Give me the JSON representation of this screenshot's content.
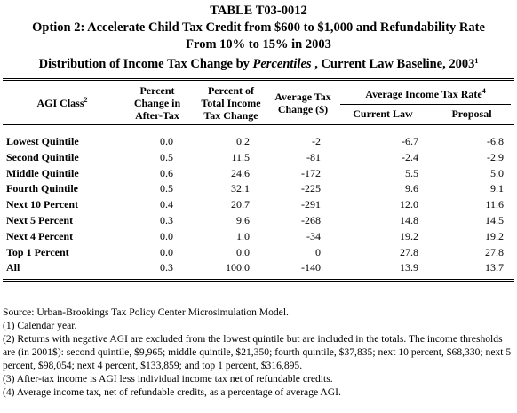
{
  "header": {
    "table_id": "TABLE T03-0012",
    "title_lines": [
      "Option 2: Accelerate Child Tax Credit from $600 to $1,000 and Refundability Rate",
      "From 10% to 15% in 2003"
    ],
    "subtitle": {
      "pre": "Distribution of Income Tax Change by ",
      "italic": "Percentiles",
      "post": " , Current Law Baseline, 2003",
      "sup": "1"
    }
  },
  "table": {
    "first_column": {
      "label": "AGI Class",
      "sup": "2"
    },
    "columns": [
      [
        "Percent",
        "Change in",
        "After-Tax"
      ],
      [
        "Percent of",
        "Total Income",
        "Tax Change"
      ],
      [
        "Average Tax",
        "Change ($)"
      ]
    ],
    "group": {
      "label": "Average Income Tax Rate",
      "sup": "4",
      "subcolumns": [
        "Current Law",
        "Proposal"
      ]
    },
    "rows": [
      [
        "Lowest Quintile",
        "0.0",
        "0.2",
        "-2",
        "-6.7",
        "-6.8"
      ],
      [
        "Second Quintile",
        "0.5",
        "11.5",
        "-81",
        "-2.4",
        "-2.9"
      ],
      [
        "Middle Quintile",
        "0.6",
        "24.6",
        "-172",
        "5.5",
        "5.0"
      ],
      [
        "Fourth Quintile",
        "0.5",
        "32.1",
        "-225",
        "9.6",
        "9.1"
      ],
      [
        "Next 10 Percent",
        "0.4",
        "20.7",
        "-291",
        "12.0",
        "11.6"
      ],
      [
        "Next 5 Percent",
        "0.3",
        "9.6",
        "-268",
        "14.8",
        "14.5"
      ],
      [
        "Next 4 Percent",
        "0.0",
        "1.0",
        "-34",
        "19.2",
        "19.2"
      ],
      [
        "Top 1 Percent",
        "0.0",
        "0.0",
        "0",
        "27.8",
        "27.8"
      ],
      [
        "All",
        "0.3",
        "100.0",
        "-140",
        "13.9",
        "13.7"
      ]
    ]
  },
  "notes": [
    "Source: Urban-Brookings Tax Policy Center Microsimulation Model.",
    "(1) Calendar year.",
    "(2) Returns with negative AGI are excluded from the lowest quintile but are included in the totals. The income thresholds are (in 2001$): second quintile, $9,965; middle quintile, $21,350; fourth quintile, $37,835; next 10 percent, $68,330; next 5 percent, $98,054; next 4 percent, $133,859; and top 1 percent, $316,895.",
    "(3) After-tax income is AGI less individual income tax net of refundable credits.",
    "(4) Average income tax, net of refundable credits, as a percentage of average AGI."
  ]
}
